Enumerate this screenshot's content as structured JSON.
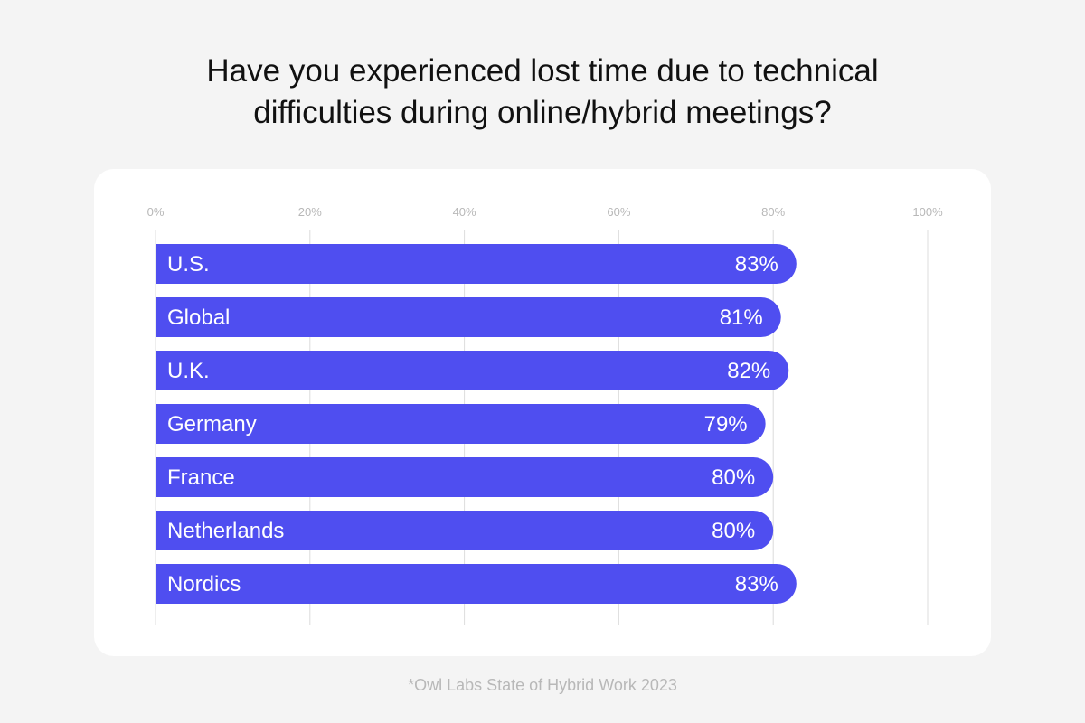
{
  "chart_data": {
    "type": "bar",
    "orientation": "horizontal",
    "title_lines": [
      "Have you experienced lost time due to technical",
      "difficulties during online/hybrid meetings?"
    ],
    "categories": [
      "U.S.",
      "Global",
      "U.K.",
      "Germany",
      "France",
      "Netherlands",
      "Nordics"
    ],
    "values": [
      83,
      81,
      82,
      79,
      80,
      80,
      83
    ],
    "value_labels": [
      "83%",
      "81%",
      "82%",
      "79%",
      "80%",
      "80%",
      "83%"
    ],
    "xlim": [
      0,
      100
    ],
    "ticks": [
      0,
      20,
      40,
      60,
      80,
      100
    ],
    "tick_labels": [
      "0%",
      "20%",
      "40%",
      "60%",
      "80%",
      "100%"
    ],
    "grid": true,
    "bar_color": "#4f4ef0",
    "source": "*Owl Labs State of Hybrid Work 2023"
  }
}
